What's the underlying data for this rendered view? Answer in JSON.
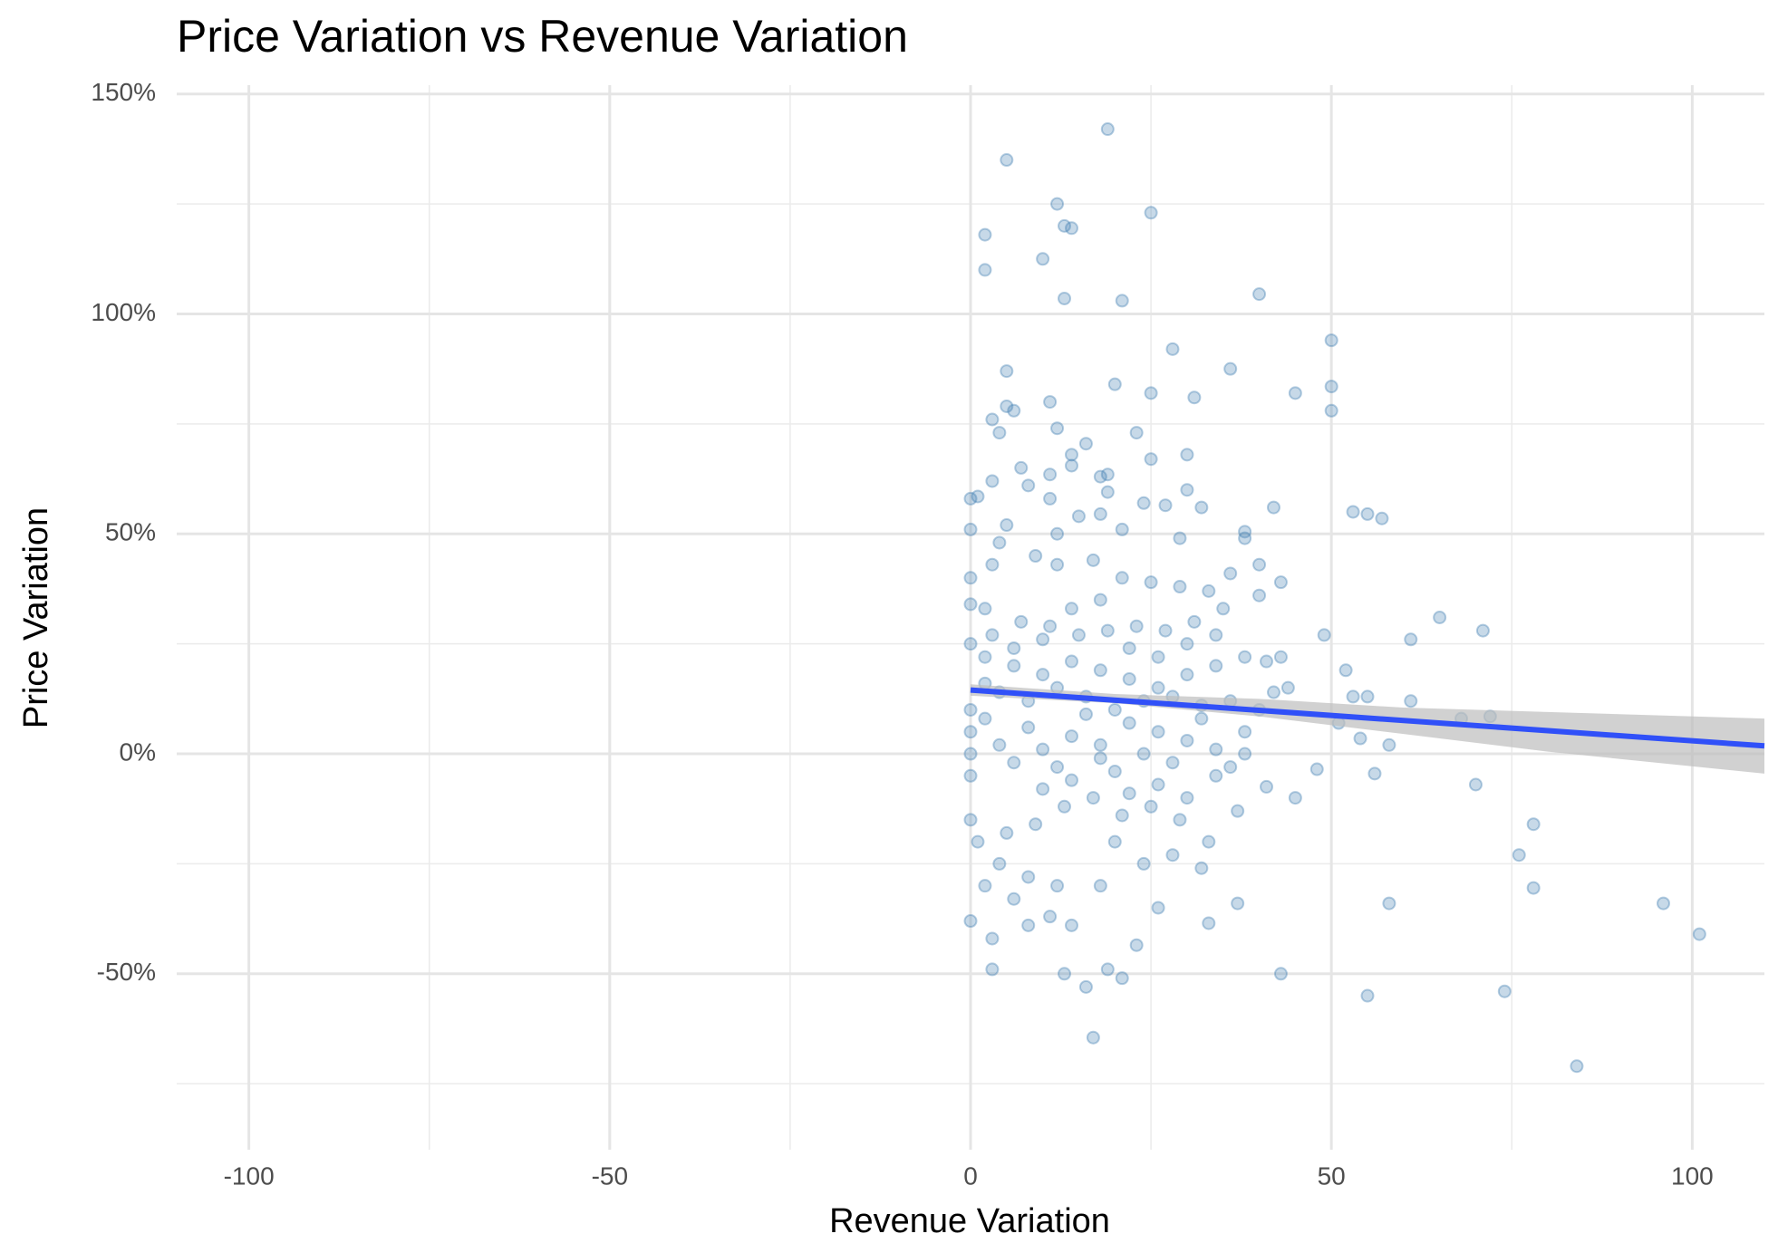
{
  "chart_data": {
    "type": "scatter",
    "title": "Price Variation vs Revenue Variation",
    "x_label": "Revenue Variation",
    "y_label": "Price Variation",
    "color": "#4682b4",
    "x": [
      19,
      5,
      12,
      25,
      13,
      14,
      2,
      2,
      10,
      13,
      21,
      40,
      50,
      28,
      5,
      36,
      20,
      50,
      45,
      25,
      31,
      5,
      6,
      11,
      50,
      3,
      12,
      4,
      23,
      16,
      14,
      30,
      25,
      7,
      14,
      18,
      19,
      3,
      8,
      11,
      19,
      30,
      1,
      0,
      11,
      24,
      32,
      42,
      27,
      53,
      55,
      57,
      0,
      5,
      15,
      18,
      38,
      21,
      29,
      4,
      12,
      38,
      0,
      0,
      2,
      3,
      9,
      12,
      17,
      21,
      25,
      29,
      33,
      36,
      40,
      43,
      40,
      35,
      31,
      27,
      23,
      19,
      15,
      11,
      7,
      3,
      0,
      2,
      6,
      10,
      14,
      18,
      22,
      26,
      30,
      34,
      38,
      41,
      43,
      49,
      52,
      65,
      71,
      61,
      61,
      55,
      53,
      51,
      68,
      72,
      58,
      54,
      56,
      48,
      70,
      45,
      41,
      37,
      33,
      29,
      25,
      21,
      17,
      13,
      9,
      5,
      1,
      0,
      0,
      3,
      3,
      8,
      11,
      14,
      16,
      17,
      19,
      21,
      23,
      13,
      18,
      26,
      33,
      37,
      43,
      55,
      58,
      74,
      76,
      78,
      78,
      84,
      96,
      101,
      0,
      0,
      0,
      0,
      2,
      4,
      6,
      8,
      10,
      12,
      14,
      16,
      18,
      20,
      22,
      24,
      26,
      28,
      30,
      32,
      34,
      36,
      38,
      40,
      42,
      44,
      36,
      32,
      28,
      24,
      20,
      16,
      12,
      8,
      4,
      2,
      6,
      10,
      14,
      18,
      22,
      26,
      30,
      34,
      20,
      24,
      28,
      32,
      12,
      8,
      4,
      2,
      6,
      10,
      14,
      18,
      22,
      26,
      30,
      34,
      38
    ],
    "values": [
      142,
      135,
      125,
      123,
      120,
      119.5,
      118,
      110,
      112.5,
      103.5,
      103,
      104.5,
      94,
      92,
      87,
      87.5,
      84,
      83.5,
      82,
      82,
      81,
      79,
      78,
      80,
      78,
      76,
      74,
      73,
      73,
      70.5,
      68,
      68,
      67,
      65,
      65.5,
      63,
      63.5,
      62,
      61,
      63.5,
      59.5,
      60,
      58.5,
      58,
      58,
      57,
      56,
      56,
      56.5,
      55,
      54.5,
      53.5,
      51,
      52,
      54,
      54.5,
      50.5,
      51,
      49,
      48,
      50,
      49,
      40,
      34,
      33,
      43,
      45,
      43,
      44,
      40,
      39,
      38,
      37,
      41,
      43,
      39,
      36,
      33,
      30,
      28,
      29,
      28,
      27,
      29,
      30,
      27,
      25,
      22,
      20,
      18,
      21,
      19,
      17,
      15,
      18,
      20,
      22,
      21,
      22,
      27,
      19,
      31,
      28,
      26,
      12,
      13,
      13,
      7,
      8,
      8.5,
      2,
      3.5,
      -4.5,
      -3.5,
      -7,
      -10,
      -7.5,
      -13,
      -20,
      -15,
      -12,
      -14,
      -10,
      -12,
      -16,
      -18,
      -20,
      -15,
      -38,
      -42,
      -49,
      -39,
      -37,
      -39,
      -53,
      -64.5,
      -49,
      -51,
      -43.5,
      -50,
      -30,
      -35,
      -38.5,
      -34,
      -50,
      -55,
      -34,
      -54,
      -23,
      -16,
      -30.5,
      -71,
      -34,
      -41,
      10,
      5,
      0,
      -5,
      8,
      2,
      -2,
      6,
      1,
      -3,
      4,
      9,
      2,
      -4,
      7,
      0,
      5,
      -2,
      3,
      8,
      1,
      -3,
      5,
      10,
      14,
      15,
      12,
      11,
      13,
      12,
      10,
      13,
      15,
      12,
      14,
      16,
      24,
      26,
      33,
      35,
      24,
      22,
      25,
      27,
      -20,
      -25,
      -23,
      -26,
      -30,
      -28,
      -25,
      -30,
      -33,
      -8,
      -6,
      -1,
      -9,
      -7,
      -10,
      -5,
      0
    ],
    "trend_line": {
      "color": "#3050f8",
      "x": [
        0,
        110
      ],
      "values": [
        14.5,
        1.8
      ]
    },
    "confidence_band": {
      "color": "#bdbdbd",
      "x": [
        0,
        20,
        40,
        60,
        80,
        110
      ],
      "lower": [
        13.2,
        11.5,
        8.5,
        4.5,
        0.5,
        -4.5
      ],
      "upper": [
        15.8,
        13.6,
        12.5,
        10.5,
        9.5,
        8
      ]
    },
    "xlim": [
      -110,
      110
    ],
    "xticks": [
      -100,
      -50,
      0,
      50,
      100
    ],
    "ylim": [
      -90,
      152
    ],
    "yticks": [
      {
        "value": -50,
        "label": "-50%"
      },
      {
        "value": 0,
        "label": "0%"
      },
      {
        "value": 50,
        "label": "50%"
      },
      {
        "value": 100,
        "label": "100%"
      },
      {
        "value": 150,
        "label": "150%"
      }
    ],
    "grid": true
  }
}
